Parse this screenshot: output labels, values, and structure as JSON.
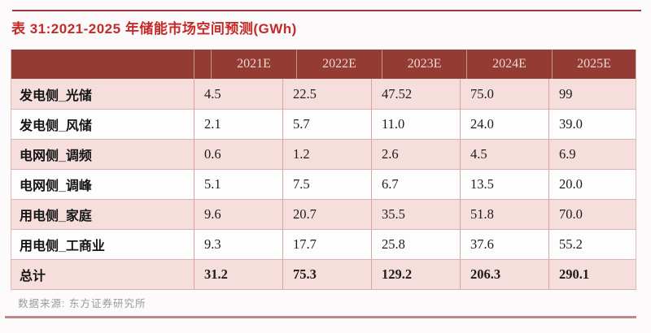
{
  "page": {
    "title": "表 31:2021-2025 年储能市场空间预测(GWh)",
    "source": "数据来源: 东方证券研究所"
  },
  "table": {
    "columns": [
      "2021E",
      "2022E",
      "2023E",
      "2024E",
      "2025E"
    ],
    "rows": [
      {
        "label": "发电侧_光储",
        "values": [
          "4.5",
          "22.5",
          "47.52",
          "75.0",
          "99"
        ]
      },
      {
        "label": "发电侧_风储",
        "values": [
          "2.1",
          "5.7",
          "11.0",
          "24.0",
          "39.0"
        ]
      },
      {
        "label": "电网侧_调频",
        "values": [
          "0.6",
          "1.2",
          "2.6",
          "4.5",
          "6.9"
        ]
      },
      {
        "label": "电网侧_调峰",
        "values": [
          "5.1",
          "7.5",
          "6.7",
          "13.5",
          "20.0"
        ]
      },
      {
        "label": "用电侧_家庭",
        "values": [
          "9.6",
          "20.7",
          "35.5",
          "51.8",
          "70.0"
        ]
      },
      {
        "label": "用电侧_工商业",
        "values": [
          "9.3",
          "17.7",
          "25.8",
          "37.6",
          "55.2"
        ]
      }
    ],
    "total_row": {
      "label": "总计",
      "values": [
        "31.2",
        "75.3",
        "129.2",
        "206.3",
        "290.1"
      ]
    }
  },
  "colors": {
    "title_red": "#c42a28",
    "header_bg": "#943b34",
    "header_text": "#eed9d4",
    "row_pink": "#f6dedc",
    "row_white": "#fefdfd",
    "top_rule": "#9a3a34",
    "bottom_rule": "#c28889",
    "grid_line": "#d9a39f",
    "source_text": "#9b9b9b"
  }
}
